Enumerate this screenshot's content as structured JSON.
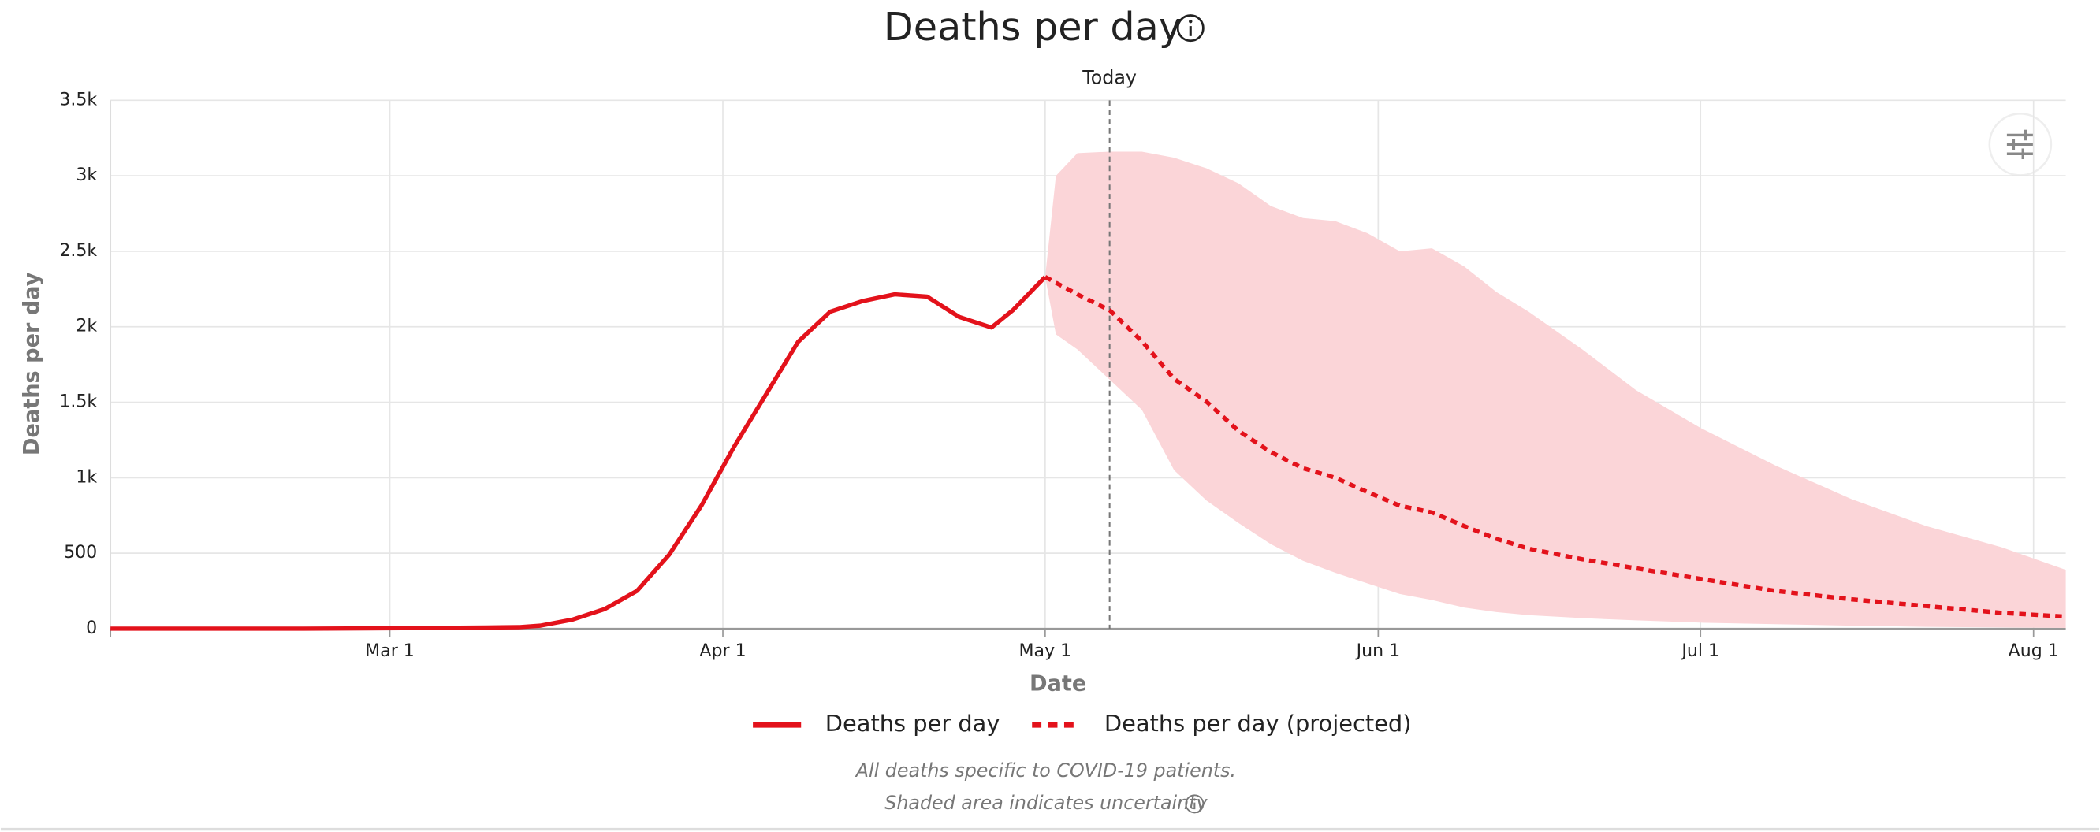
{
  "chart_data": {
    "type": "line",
    "title": "Deaths per day",
    "xlabel": "Date",
    "ylabel": "Deaths per day",
    "xlim": [
      "02-04",
      "08-04"
    ],
    "xticks": [
      {
        "value": "03-01",
        "label": "Mar 1"
      },
      {
        "value": "04-01",
        "label": "Apr 1"
      },
      {
        "value": "05-01",
        "label": "May 1"
      },
      {
        "value": "06-01",
        "label": "Jun 1"
      },
      {
        "value": "07-01",
        "label": "Jul 1"
      },
      {
        "value": "08-01",
        "label": "Aug 1"
      }
    ],
    "ylim": [
      0,
      3500
    ],
    "yticks": [
      0,
      500,
      {
        "value": 1000,
        "label": "1k"
      },
      {
        "value": 1500,
        "label": "1.5k"
      },
      {
        "value": 2000,
        "label": "2k"
      },
      {
        "value": 2500,
        "label": "2.5k"
      },
      {
        "value": 3000,
        "label": "3k"
      },
      {
        "value": 3500,
        "label": "3.5k"
      }
    ],
    "grid": true,
    "legend": "bottom",
    "series": [
      {
        "name": "Deaths per day",
        "color": "#e3121b",
        "linestyle": "solid",
        "x": [
          "02-04",
          "02-10",
          "02-16",
          "02-22",
          "02-28",
          "03-05",
          "03-10",
          "03-13",
          "03-15",
          "03-18",
          "03-21",
          "03-24",
          "03-27",
          "03-30",
          "04-02",
          "04-05",
          "04-08",
          "04-11",
          "04-14",
          "04-17",
          "04-20",
          "04-23",
          "04-26",
          "04-28",
          "05-01"
        ],
        "values": [
          0,
          0,
          0,
          0,
          2,
          5,
          8,
          10,
          20,
          60,
          130,
          250,
          490,
          815,
          1200,
          1550,
          1900,
          2100,
          2170,
          2215,
          2200,
          2065,
          1995,
          2110,
          2330
        ]
      },
      {
        "name": "Deaths per day (projected)",
        "color": "#e3121b",
        "linestyle": "dotted",
        "x": [
          "05-01",
          "05-04",
          "05-07",
          "05-10",
          "05-13",
          "05-16",
          "05-19",
          "05-22",
          "05-25",
          "05-28",
          "05-31",
          "06-03",
          "06-06",
          "06-09",
          "06-12",
          "06-15",
          "06-20",
          "06-25",
          "07-01",
          "07-08",
          "07-15",
          "07-22",
          "07-29",
          "08-04"
        ],
        "values": [
          2330,
          2215,
          2110,
          1905,
          1655,
          1505,
          1310,
          1170,
          1063,
          1000,
          905,
          815,
          770,
          680,
          595,
          530,
          460,
          400,
          330,
          250,
          195,
          150,
          105,
          80
        ]
      }
    ],
    "band": {
      "color": "#fbd5d8",
      "x": [
        "05-01",
        "05-02",
        "05-04",
        "05-07",
        "05-10",
        "05-13",
        "05-16",
        "05-19",
        "05-22",
        "05-25",
        "05-28",
        "05-31",
        "06-03",
        "06-06",
        "06-09",
        "06-12",
        "06-15",
        "06-20",
        "06-25",
        "07-01",
        "07-08",
        "07-15",
        "07-22",
        "07-29",
        "08-04"
      ],
      "upper": [
        2330,
        3000,
        3150,
        3160,
        3160,
        3120,
        3050,
        2950,
        2800,
        2720,
        2700,
        2620,
        2500,
        2520,
        2400,
        2230,
        2100,
        1850,
        1580,
        1330,
        1080,
        860,
        680,
        540,
        390
      ],
      "lower": [
        2330,
        1950,
        1850,
        1650,
        1450,
        1050,
        850,
        700,
        560,
        450,
        370,
        300,
        230,
        190,
        140,
        110,
        90,
        70,
        55,
        40,
        30,
        20,
        12,
        8,
        5
      ]
    },
    "today": {
      "x": "05-07",
      "label": "Today"
    },
    "notes": [
      "All deaths specific to COVID-19 patients.",
      "Shaded area indicates uncertainty"
    ]
  }
}
